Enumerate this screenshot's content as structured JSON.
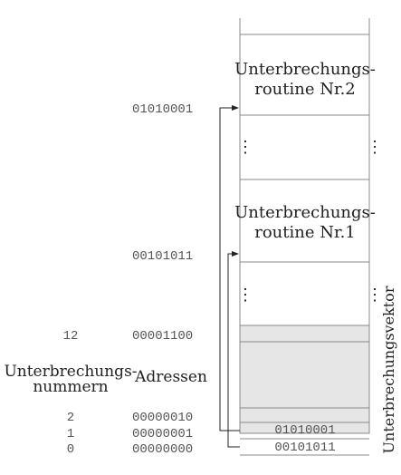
{
  "routine2": {
    "line1": "Unterbrechungs-",
    "line2": "routine Nr.2",
    "address": "01010001"
  },
  "routine1": {
    "line1": "Unterbrechungs-",
    "line2": "routine Nr.1",
    "address": "00101011"
  },
  "ellipsis": "⋮",
  "vector": {
    "label": "Unterbrechungsvektor",
    "entry1": "01010001",
    "entry0": "00101011"
  },
  "headers": {
    "numbers_line1": "Unterbrechungs-",
    "numbers_line2": "nummern",
    "addresses": "Adressen"
  },
  "rows": [
    {
      "number": "12",
      "address": "00001100"
    },
    {
      "number": "2",
      "address": "00000010"
    },
    {
      "number": "1",
      "address": "00000001"
    },
    {
      "number": "0",
      "address": "00000000"
    }
  ],
  "colors": {
    "line": "#888888",
    "vector_fill": "#e6e6e6",
    "arrow": "#222222"
  }
}
